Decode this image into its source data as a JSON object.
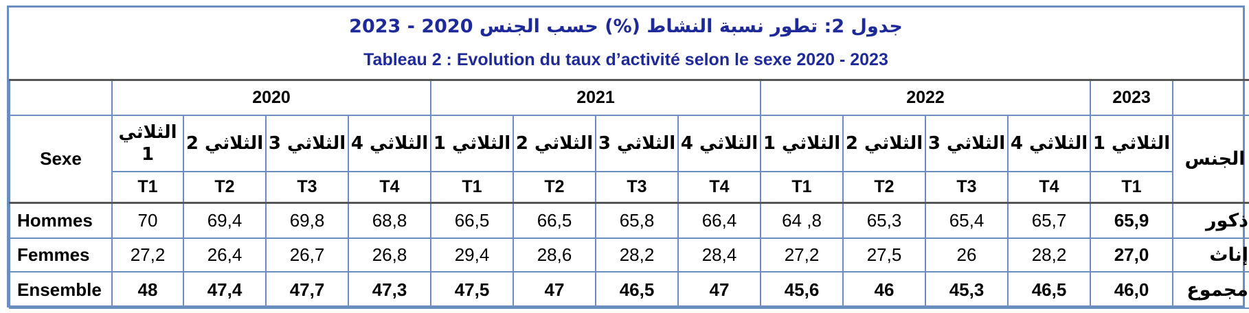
{
  "title": {
    "ar": "جدول 2: تطور نسبة النشاط (%) حسب الجنس 2020 - 2023",
    "fr": "Tableau 2 : Evolution du taux d’activité selon le sexe 2020 - 2023"
  },
  "header": {
    "sexe_label": "Sexe",
    "jins_label": "الجنس",
    "years": [
      "2020",
      "2021",
      "2022",
      "2023"
    ],
    "quarters_ar": [
      "الثلاثي 1",
      "الثلاثي 2",
      "الثلاثي 3",
      "الثلاثي 4",
      "الثلاثي 1",
      "الثلاثي 2",
      "الثلاثي 3",
      "الثلاثي 4",
      "الثلاثي 1",
      "الثلاثي 2",
      "الثلاثي 3",
      "الثلاثي 4",
      "الثلاثي 1"
    ],
    "quarters_code": [
      "T1",
      "T2",
      "T3",
      "T4",
      "T1",
      "T2",
      "T3",
      "T4",
      "T1",
      "T2",
      "T3",
      "T4",
      "T1"
    ]
  },
  "rows": [
    {
      "fr": "Hommes",
      "ar": "ذكور",
      "values": [
        "70",
        "69,4",
        "69,8",
        "68,8",
        "66,5",
        "66,5",
        "65,8",
        "66,4",
        "64 ,8",
        "65,3",
        "65,4",
        "65,7",
        "65,9"
      ]
    },
    {
      "fr": "Femmes",
      "ar": "إناث",
      "values": [
        "27,2",
        "26,4",
        "26,7",
        "26,8",
        "29,4",
        "28,6",
        "28,2",
        "28,4",
        "27,2",
        "27,5",
        "26",
        "28,2",
        "27,0"
      ]
    },
    {
      "fr": "Ensemble",
      "ar": "مجموع",
      "values": [
        "48",
        "47,4",
        "47,7",
        "47,3",
        "47,5",
        "47",
        "46,5",
        "47",
        "45,6",
        "46",
        "45,3",
        "46,5",
        "46,0"
      ]
    }
  ]
}
